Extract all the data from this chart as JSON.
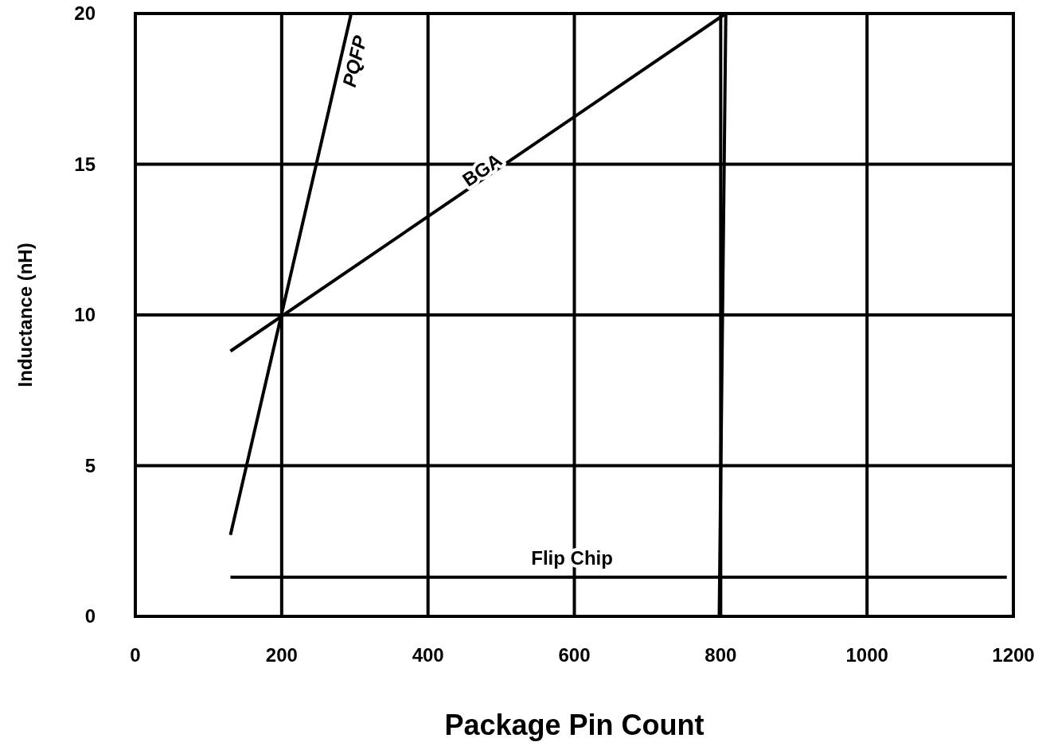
{
  "chart_data": {
    "type": "line",
    "xlabel": "Package Pin Count",
    "ylabel": "Inductance (nH)",
    "xlim": [
      0,
      1200
    ],
    "ylim": [
      0,
      20
    ],
    "xticks": [
      0,
      200,
      400,
      600,
      800,
      1000,
      1200
    ],
    "yticks": [
      0,
      5,
      10,
      15,
      20
    ],
    "grid": true,
    "marker": "none",
    "line_style": "solid",
    "series": [
      {
        "name": "PQFP",
        "color": "#000000",
        "x": [
          130,
          295
        ],
        "values": [
          2.7,
          20
        ]
      },
      {
        "name": "BGA",
        "color": "#000000",
        "x": [
          130,
          807
        ],
        "values": [
          8.8,
          20
        ]
      },
      {
        "name": "Flip Chip",
        "color": "#000000",
        "x": [
          130,
          1191
        ],
        "values": [
          1.3,
          1.3
        ]
      },
      {
        "color": "#000000",
        "x": [
          798,
          807
        ],
        "values": [
          0,
          20
        ]
      }
    ]
  }
}
